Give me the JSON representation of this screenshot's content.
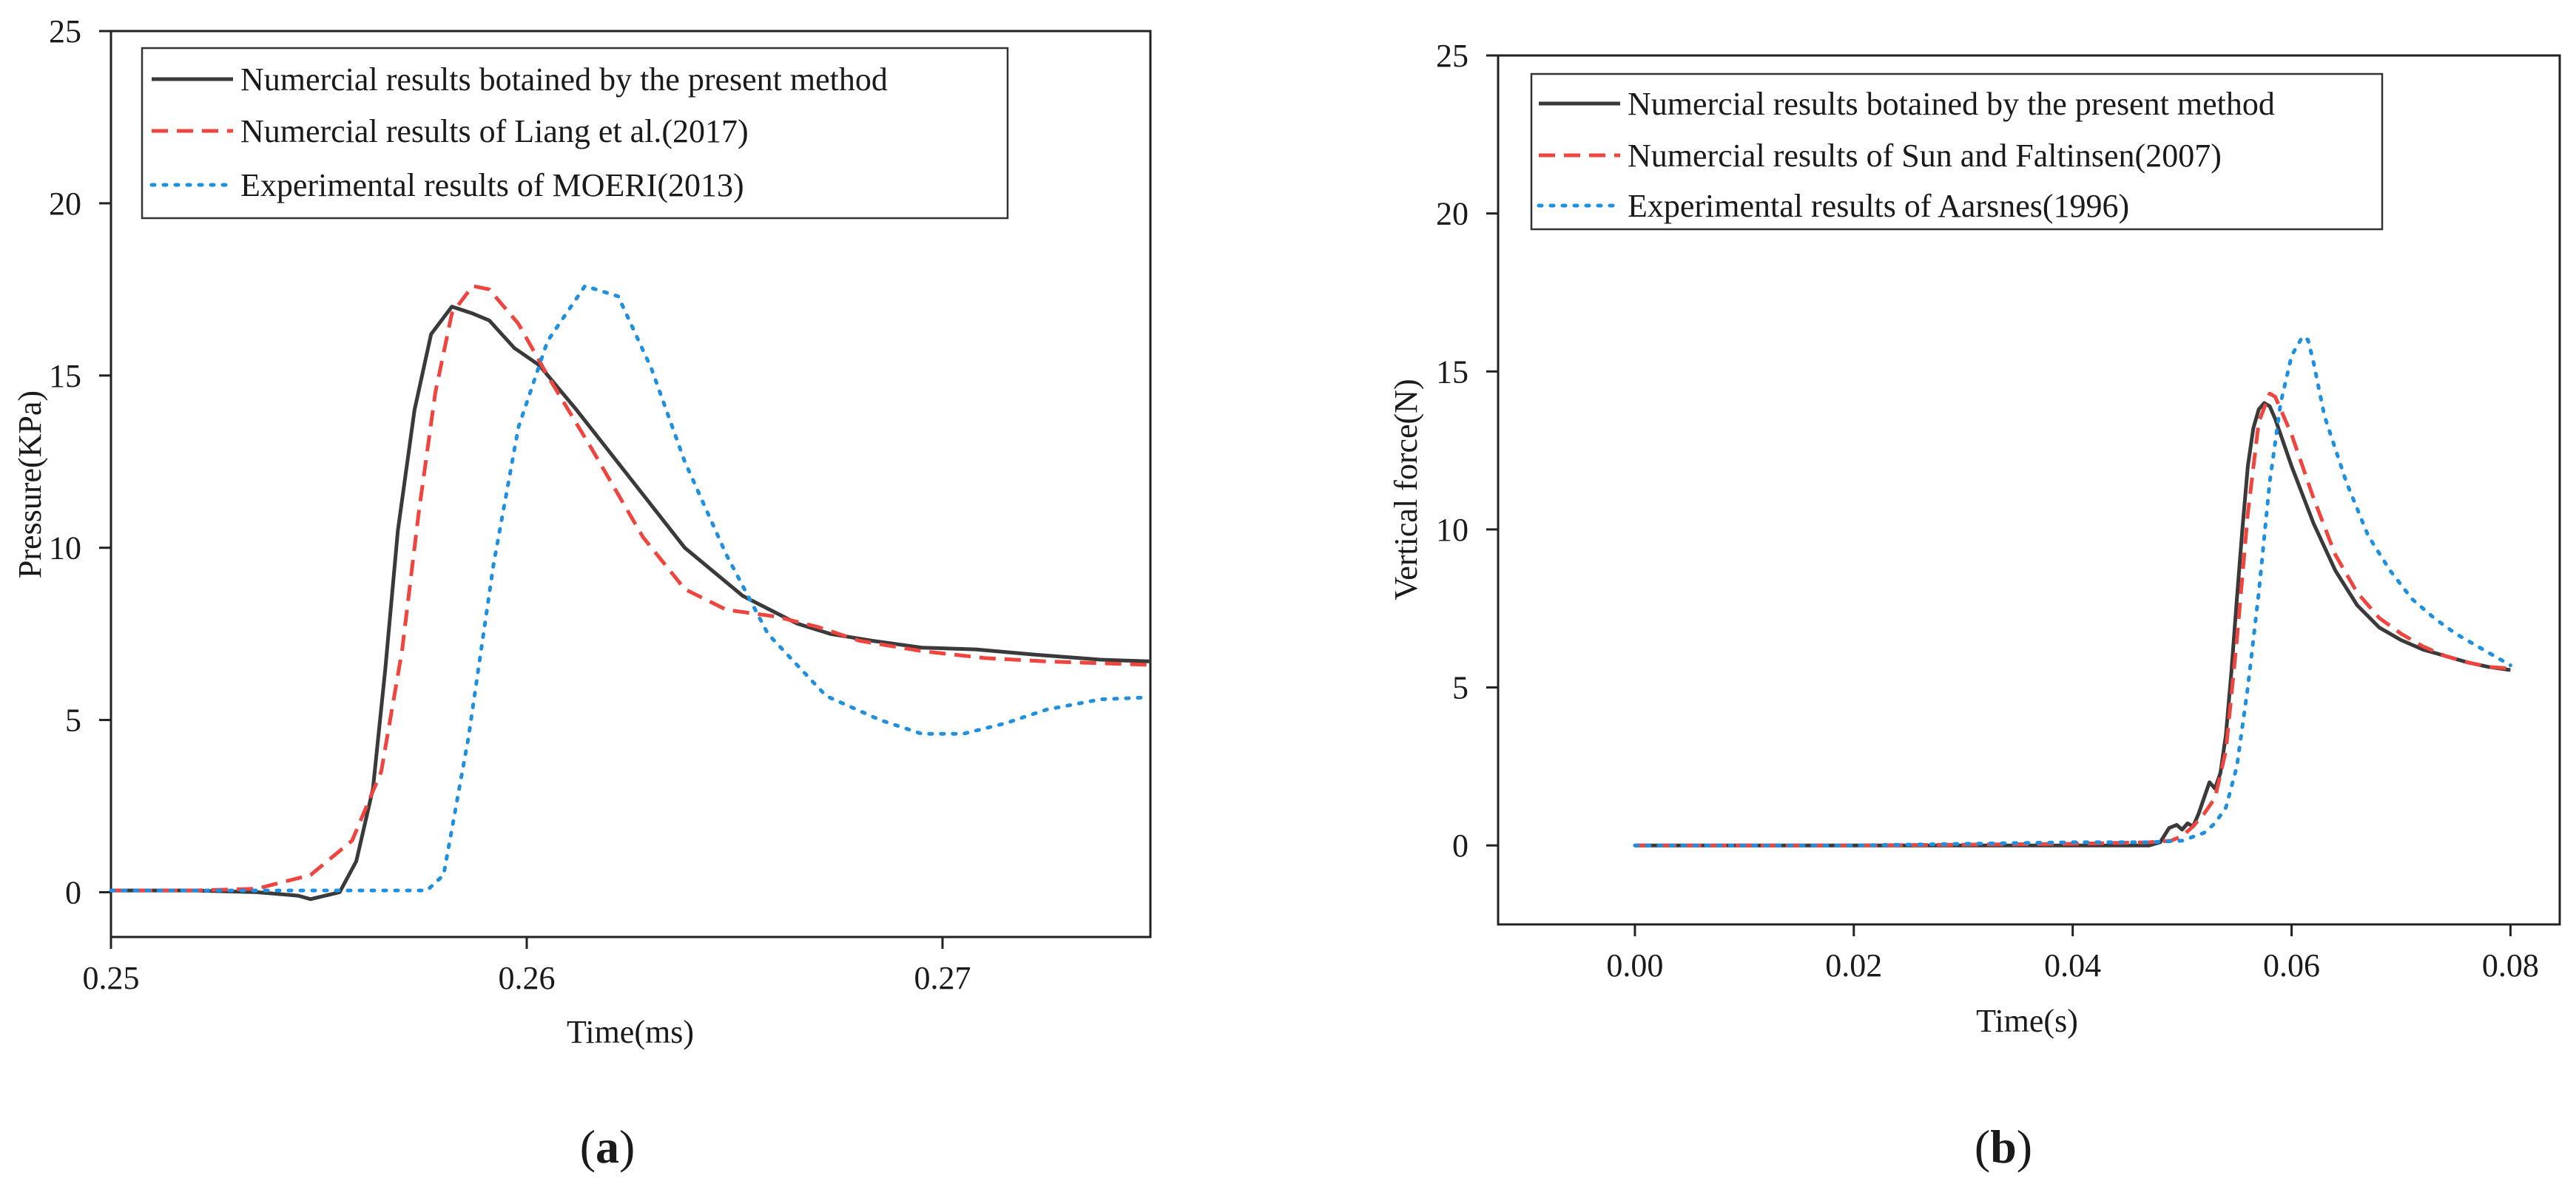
{
  "chart_data": [
    {
      "type": "line",
      "panel_label": "a",
      "xlabel": "Time(ms)",
      "ylabel": "Pressure(KPa)",
      "xlim": [
        0.25,
        0.275
      ],
      "ylim": [
        -1.3,
        25
      ],
      "xticks": [
        0.25,
        0.26,
        0.27
      ],
      "xtick_labels": [
        "0.25",
        "0.26",
        "0.27"
      ],
      "yticks": [
        0,
        5,
        10,
        15,
        20,
        25
      ],
      "ytick_labels": [
        "0",
        "5",
        "10",
        "15",
        "20",
        "25"
      ],
      "legend_position": "top-left",
      "series": [
        {
          "name": "Numercial results botained by the present method",
          "color": "#3a3a3a",
          "dash": "solid",
          "x": [
            0.25,
            0.252,
            0.2535,
            0.2545,
            0.2548,
            0.2555,
            0.2559,
            0.2563,
            0.2566,
            0.2569,
            0.2573,
            0.2577,
            0.2582,
            0.2587,
            0.2591,
            0.2597,
            0.2603,
            0.2612,
            0.2625,
            0.2638,
            0.2652,
            0.2665,
            0.2673,
            0.2683,
            0.2695,
            0.2708,
            0.2722,
            0.2738,
            0.275
          ],
          "y": [
            0.05,
            0.05,
            0.0,
            -0.1,
            -0.2,
            0.0,
            0.9,
            3.0,
            6.5,
            10.5,
            14.0,
            16.2,
            17.0,
            16.8,
            16.6,
            15.8,
            15.3,
            14.0,
            12.0,
            10.0,
            8.6,
            7.8,
            7.5,
            7.3,
            7.1,
            7.05,
            6.9,
            6.75,
            6.7
          ]
        },
        {
          "name": "Numercial results of Liang et al.(2017)",
          "color": "#f0443e",
          "dash": "dashed",
          "x": [
            0.25,
            0.252,
            0.2535,
            0.2548,
            0.2558,
            0.2565,
            0.257,
            0.2574,
            0.2578,
            0.2582,
            0.2587,
            0.2591,
            0.2598,
            0.2605,
            0.2615,
            0.2628,
            0.2638,
            0.2648,
            0.266,
            0.267,
            0.268,
            0.2695,
            0.271,
            0.2725,
            0.275
          ],
          "y": [
            0.05,
            0.05,
            0.1,
            0.5,
            1.5,
            3.5,
            7.0,
            11.0,
            14.5,
            16.8,
            17.6,
            17.5,
            16.5,
            15.0,
            13.0,
            10.3,
            8.8,
            8.2,
            8.0,
            7.7,
            7.3,
            7.0,
            6.8,
            6.7,
            6.6
          ]
        },
        {
          "name": "Experimental results of MOERI(2013)",
          "color": "#1f8fe0",
          "dash": "dotted",
          "x": [
            0.25,
            0.255,
            0.2576,
            0.258,
            0.2586,
            0.2592,
            0.2598,
            0.2605,
            0.2614,
            0.2622,
            0.263,
            0.2638,
            0.2648,
            0.2658,
            0.2672,
            0.2685,
            0.2695,
            0.2705,
            0.2715,
            0.2725,
            0.2738,
            0.2748
          ],
          "y": [
            0.05,
            0.05,
            0.05,
            0.5,
            4.5,
            9.5,
            13.5,
            16.0,
            17.6,
            17.3,
            15.2,
            12.5,
            9.8,
            7.5,
            5.7,
            5.0,
            4.6,
            4.6,
            4.9,
            5.3,
            5.6,
            5.65
          ]
        }
      ]
    },
    {
      "type": "line",
      "panel_label": "b",
      "xlabel": "Time(s)",
      "ylabel": "Vertical force(N)",
      "xlim": [
        -0.0125,
        0.0845
      ],
      "ylim": [
        -2.5,
        25
      ],
      "xticks": [
        0.0,
        0.02,
        0.04,
        0.06,
        0.08
      ],
      "xtick_labels": [
        "0.00",
        "0.02",
        "0.04",
        "0.06",
        "0.08"
      ],
      "yticks": [
        0,
        5,
        10,
        15,
        20,
        25
      ],
      "ytick_labels": [
        "0",
        "5",
        "10",
        "15",
        "20",
        "25"
      ],
      "legend_position": "top-left",
      "series": [
        {
          "name": "Numercial results botained by the present method",
          "color": "#3a3a3a",
          "dash": "solid",
          "x": [
            0.0,
            0.02,
            0.04,
            0.046,
            0.047,
            0.048,
            0.0488,
            0.0495,
            0.05,
            0.0505,
            0.051,
            0.0515,
            0.052,
            0.0525,
            0.053,
            0.0535,
            0.054,
            0.0545,
            0.055,
            0.0555,
            0.056,
            0.0565,
            0.057,
            0.0575,
            0.058,
            0.0585,
            0.059,
            0.06,
            0.062,
            0.064,
            0.066,
            0.068,
            0.07,
            0.072,
            0.074,
            0.076,
            0.078,
            0.08
          ],
          "y": [
            0.0,
            0.0,
            0.0,
            0.0,
            0.0,
            0.1,
            0.55,
            0.65,
            0.5,
            0.7,
            0.6,
            1.0,
            1.5,
            2.0,
            1.8,
            2.3,
            3.5,
            5.5,
            7.8,
            10.0,
            12.0,
            13.2,
            13.8,
            14.0,
            13.9,
            13.5,
            13.0,
            12.0,
            10.2,
            8.7,
            7.6,
            6.9,
            6.5,
            6.2,
            6.0,
            5.8,
            5.65,
            5.55
          ]
        },
        {
          "name": "Numercial results of Sun and Faltinsen(2007)",
          "color": "#f0443e",
          "dash": "dashed",
          "x": [
            0.0,
            0.02,
            0.04,
            0.047,
            0.049,
            0.05,
            0.051,
            0.052,
            0.053,
            0.054,
            0.055,
            0.056,
            0.057,
            0.058,
            0.0585,
            0.059,
            0.06,
            0.062,
            0.064,
            0.066,
            0.068,
            0.07,
            0.072,
            0.074,
            0.076,
            0.078,
            0.08
          ],
          "y": [
            0.0,
            0.0,
            0.05,
            0.1,
            0.15,
            0.3,
            0.6,
            1.0,
            1.5,
            3.0,
            6.5,
            10.5,
            13.4,
            14.3,
            14.2,
            13.8,
            13.0,
            11.0,
            9.2,
            8.0,
            7.2,
            6.7,
            6.3,
            6.0,
            5.8,
            5.65,
            5.6
          ]
        },
        {
          "name": "Experimental results of Aarsnes(1996)",
          "color": "#1f8fe0",
          "dash": "dotted",
          "x": [
            0.0,
            0.02,
            0.04,
            0.047,
            0.05,
            0.052,
            0.053,
            0.054,
            0.055,
            0.056,
            0.057,
            0.058,
            0.059,
            0.06,
            0.061,
            0.0615,
            0.062,
            0.063,
            0.065,
            0.067,
            0.069,
            0.071,
            0.073,
            0.075,
            0.077,
            0.079,
            0.08
          ],
          "y": [
            0.0,
            0.0,
            0.1,
            0.1,
            0.15,
            0.4,
            0.7,
            1.2,
            2.5,
            5.0,
            8.0,
            11.5,
            14.0,
            15.5,
            16.1,
            16.0,
            15.3,
            13.6,
            11.5,
            9.8,
            8.7,
            7.8,
            7.2,
            6.7,
            6.3,
            5.9,
            5.7
          ]
        }
      ]
    }
  ]
}
